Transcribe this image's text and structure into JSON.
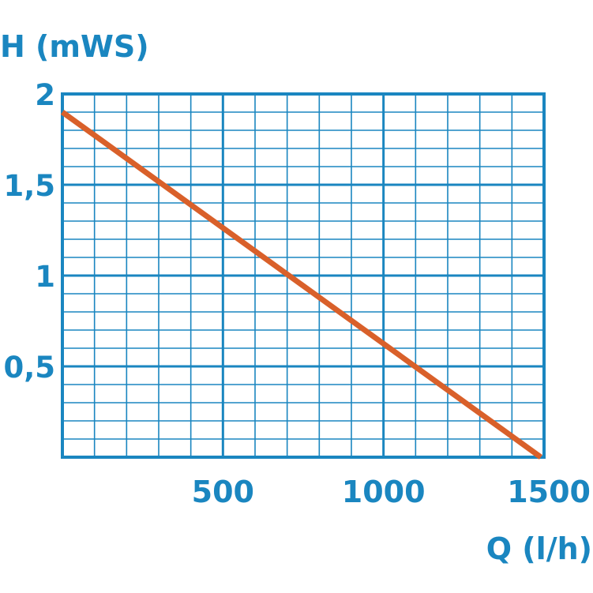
{
  "chart_data": {
    "type": "line",
    "title": "",
    "ylabel": "H (mWS)",
    "xlabel": "Q (l/h)",
    "xlim": [
      0,
      1500
    ],
    "ylim": [
      0,
      2
    ],
    "x_major_ticks": [
      500,
      1000,
      1500
    ],
    "x_tick_labels": [
      "500",
      "1000",
      "1500"
    ],
    "y_major_ticks": [
      0.5,
      1,
      1.5,
      2
    ],
    "y_tick_labels": [
      "0,5",
      "1",
      "1,5",
      "2"
    ],
    "grid": true,
    "x_minor_step": 100,
    "y_minor_step": 0.1,
    "series": [
      {
        "x": [
          0,
          1490
        ],
        "y": [
          1.9,
          0
        ]
      }
    ],
    "colors": {
      "axis": "#1a86c0",
      "grid": "#1a86c0",
      "line": "#d9602a",
      "background": "#ffffff"
    }
  }
}
